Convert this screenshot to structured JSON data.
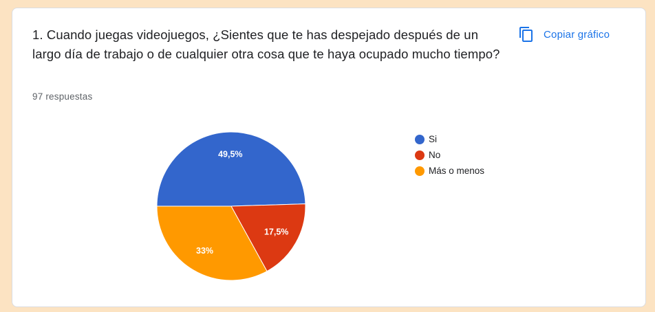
{
  "question": {
    "title": "1. Cuando juegas videojuegos, ¿Sientes que te has despejado después de un largo día de trabajo o de cualquier otra cosa que te haya ocupado mucho tiempo?",
    "responses": "97 respuestas"
  },
  "toolbar": {
    "copy_label": "Copiar gráfico",
    "copy_icon": "copy-icon"
  },
  "colors": {
    "accent": "#1a73e8",
    "background": "#fce3c2"
  },
  "chart_data": {
    "type": "pie",
    "title": "",
    "legend_position": "right",
    "slices": [
      {
        "label": "Si",
        "value": 49.5,
        "display": "49,5%",
        "color": "#3366cc"
      },
      {
        "label": "No",
        "value": 17.5,
        "display": "17,5%",
        "color": "#dc3912"
      },
      {
        "label": "Más o menos",
        "value": 33,
        "display": "33%",
        "color": "#ff9900"
      }
    ]
  }
}
